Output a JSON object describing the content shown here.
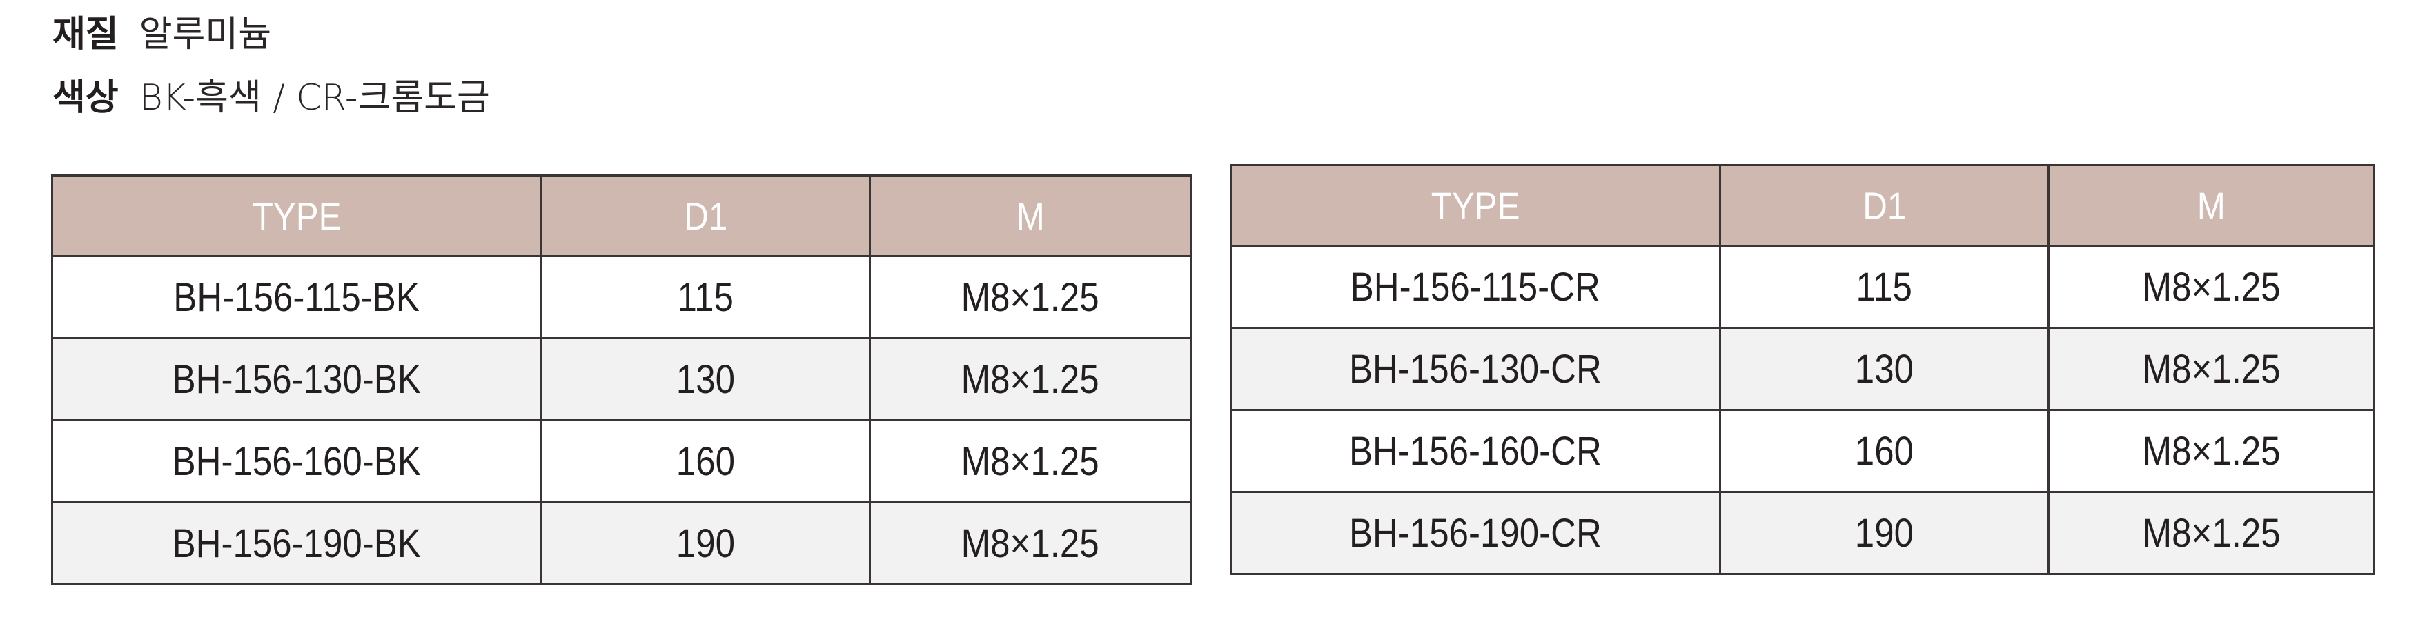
{
  "specs": [
    {
      "label": "재질",
      "value": "알루미늄"
    },
    {
      "label": "색상",
      "value": "BK-흑색 / CR-크롬도금"
    }
  ],
  "colors": {
    "header_bg": "#cfb8b0",
    "header_text": "#ffffff",
    "alt_row": "#f3f2f2"
  },
  "tables": [
    {
      "headers": [
        "TYPE",
        "D1",
        "M"
      ],
      "rows": [
        [
          "BH-156-115-BK",
          "115",
          "M8×1.25"
        ],
        [
          "BH-156-130-BK",
          "130",
          "M8×1.25"
        ],
        [
          "BH-156-160-BK",
          "160",
          "M8×1.25"
        ],
        [
          "BH-156-190-BK",
          "190",
          "M8×1.25"
        ]
      ]
    },
    {
      "headers": [
        "TYPE",
        "D1",
        "M"
      ],
      "rows": [
        [
          "BH-156-115-CR",
          "115",
          "M8×1.25"
        ],
        [
          "BH-156-130-CR",
          "130",
          "M8×1.25"
        ],
        [
          "BH-156-160-CR",
          "160",
          "M8×1.25"
        ],
        [
          "BH-156-190-CR",
          "190",
          "M8×1.25"
        ]
      ]
    }
  ]
}
